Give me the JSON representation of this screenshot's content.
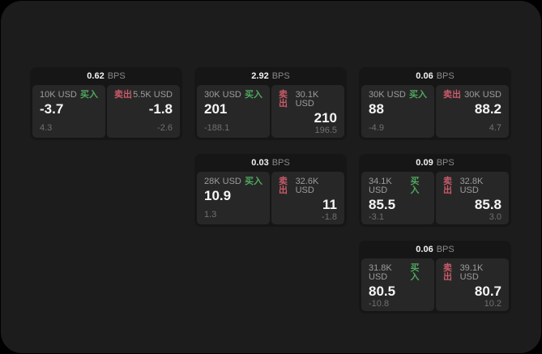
{
  "labels": {
    "bps_unit": "BPS",
    "buy": "买入",
    "sell": "卖出"
  },
  "colors": {
    "buy_green": "#4fa75f",
    "sell_red": "#c85a69",
    "panel_bg": "#272727",
    "card_bg": "#161616",
    "window_bg": "#1c1c1c"
  },
  "cards": [
    {
      "bps": "0.62",
      "row": 1,
      "col": 1,
      "buy": {
        "amount": "10K USD",
        "price": "-3.7",
        "delta": "4.3"
      },
      "sell": {
        "amount": "5.5K USD",
        "price": "-1.8",
        "delta": "-2.6"
      }
    },
    {
      "bps": "2.92",
      "row": 1,
      "col": 2,
      "buy": {
        "amount": "30K USD",
        "price": "201",
        "delta": "-188.1"
      },
      "sell": {
        "amount": "30.1K USD",
        "price": "210",
        "delta": "196.5"
      }
    },
    {
      "bps": "0.06",
      "row": 1,
      "col": 3,
      "buy": {
        "amount": "30K USD",
        "price": "88",
        "delta": "-4.9"
      },
      "sell": {
        "amount": "30K USD",
        "price": "88.2",
        "delta": "4.7"
      }
    },
    {
      "bps": "0.03",
      "row": 2,
      "col": 2,
      "buy": {
        "amount": "28K USD",
        "price": "10.9",
        "delta": "1.3"
      },
      "sell": {
        "amount": "32.6K USD",
        "price": "11",
        "delta": "-1.8"
      }
    },
    {
      "bps": "0.09",
      "row": 2,
      "col": 3,
      "buy": {
        "amount": "34.1K USD",
        "price": "85.5",
        "delta": "-3.1"
      },
      "sell": {
        "amount": "32.8K USD",
        "price": "85.8",
        "delta": "3.0"
      }
    },
    {
      "bps": "0.06",
      "row": 3,
      "col": 3,
      "buy": {
        "amount": "31.8K USD",
        "price": "80.5",
        "delta": "-10.8"
      },
      "sell": {
        "amount": "39.1K USD",
        "price": "80.7",
        "delta": "10.2"
      }
    }
  ]
}
